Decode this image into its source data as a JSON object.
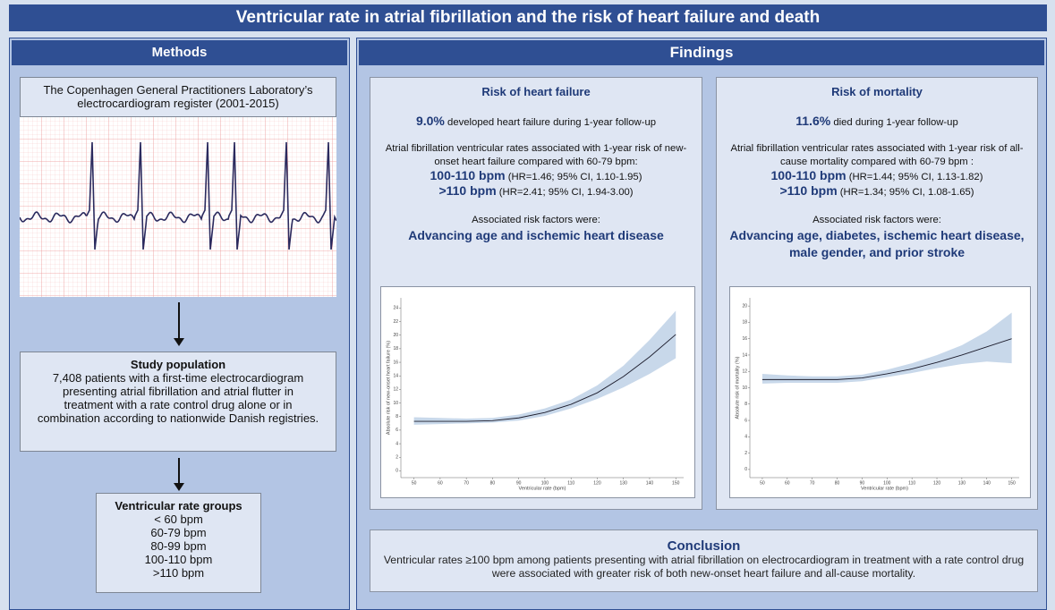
{
  "header": {
    "title": "Ventricular rate in atrial fibrillation and the risk of heart failure and death"
  },
  "methods": {
    "heading": "Methods",
    "register": "The Copenhagen General Practitioners Laboratory’s electrocardiogram register (2001-2015)",
    "study_population": {
      "title": "Study population",
      "text": "7,408 patients with a first-time electrocardiogram presenting atrial fibrillation and atrial flutter in treatment with a rate control drug alone or in combination according to nationwide Danish registries."
    },
    "rate_groups": {
      "title": "Ventricular rate groups",
      "items": [
        "< 60 bpm",
        "60-79 bpm",
        "80-99 bpm",
        "100-110 bpm",
        ">110 bpm"
      ]
    }
  },
  "findings": {
    "heading": "Findings",
    "panels": [
      {
        "title": "Risk of heart failure",
        "headline_value": "9.0%",
        "headline_text": "developed heart failure during 1-year follow-up",
        "association_text": "Atrial fibrillation ventricular rates associated with 1-year risk of new-onset heart failure compared with 60-79 bpm:",
        "results": [
          {
            "group": "100-110 bpm",
            "hr": "(HR=1.46; 95% CI, 1.10-1.95)"
          },
          {
            "group": ">110 bpm",
            "hr": "(HR=2.41; 95% CI, 1.94-3.00)"
          }
        ],
        "risk_factors_label": "Associated risk factors were:",
        "risk_factors": "Advancing age and ischemic heart disease"
      },
      {
        "title": "Risk of mortality",
        "headline_value": "11.6%",
        "headline_text": "died during 1-year follow-up",
        "association_text": "Atrial fibrillation ventricular rates associated with 1-year risk of all-cause mortality compared with 60-79 bpm :",
        "results": [
          {
            "group": "100-110 bpm",
            "hr": "(HR=1.44; 95% CI, 1.13-1.82)"
          },
          {
            "group": ">110 bpm",
            "hr": "(HR=1.34; 95% CI, 1.08-1.65)"
          }
        ],
        "risk_factors_label": "Associated risk factors were:",
        "risk_factors": "Advancing age, diabetes, ischemic heart disease, male gender, and prior stroke"
      }
    ]
  },
  "conclusion": {
    "title": "Conclusion",
    "text": "Ventricular rates ≥100 bpm among patients presenting with atrial fibrillation on electrocardiogram in treatment with a rate control drug were associated with greater risk of both new-onset heart failure and all-cause mortality."
  },
  "chart_data": [
    {
      "type": "line",
      "x_label": "Ventricular rate (bpm)",
      "y_label": "Absolute risk of new-onset heart failure (%)",
      "x": [
        50,
        60,
        70,
        80,
        90,
        100,
        110,
        120,
        130,
        140,
        150
      ],
      "values": [
        7.3,
        7.3,
        7.3,
        7.4,
        7.8,
        8.6,
        9.8,
        11.5,
        13.9,
        16.8,
        20.1
      ],
      "ci_lower": [
        6.8,
        6.9,
        7.0,
        7.1,
        7.4,
        8.1,
        9.2,
        10.6,
        12.3,
        14.3,
        16.6
      ],
      "ci_upper": [
        7.9,
        7.8,
        7.7,
        7.8,
        8.3,
        9.2,
        10.5,
        12.6,
        15.5,
        19.3,
        23.6
      ],
      "xlim": [
        45,
        153
      ],
      "ylim": [
        -1,
        25.5
      ],
      "xticks": [
        50,
        60,
        70,
        80,
        90,
        100,
        110,
        120,
        130,
        140,
        150
      ],
      "yticks": [
        0,
        2,
        4,
        6,
        8,
        10,
        12,
        14,
        16,
        18,
        20,
        22,
        24
      ],
      "color": "#1c1c2c",
      "band_color": "#c8d8ea"
    },
    {
      "type": "line",
      "x_label": "Ventricular rate (bpm)",
      "y_label": "Absolute risk of mortality (%)",
      "x": [
        50,
        60,
        70,
        80,
        90,
        100,
        110,
        120,
        130,
        140,
        150
      ],
      "values": [
        11.0,
        11.0,
        11.0,
        11.0,
        11.2,
        11.7,
        12.3,
        13.1,
        14.0,
        15.0,
        16.0
      ],
      "ci_lower": [
        10.5,
        10.6,
        10.6,
        10.6,
        10.8,
        11.3,
        11.8,
        12.4,
        12.9,
        13.2,
        13.0
      ],
      "ci_upper": [
        11.7,
        11.5,
        11.4,
        11.4,
        11.6,
        12.2,
        13.0,
        14.0,
        15.2,
        16.9,
        19.2
      ],
      "xlim": [
        45,
        153
      ],
      "ylim": [
        -1,
        21
      ],
      "xticks": [
        50,
        60,
        70,
        80,
        90,
        100,
        110,
        120,
        130,
        140,
        150
      ],
      "yticks": [
        0,
        2,
        4,
        6,
        8,
        10,
        12,
        14,
        16,
        18,
        20
      ],
      "color": "#1c1c2c",
      "band_color": "#c8d8ea"
    }
  ]
}
